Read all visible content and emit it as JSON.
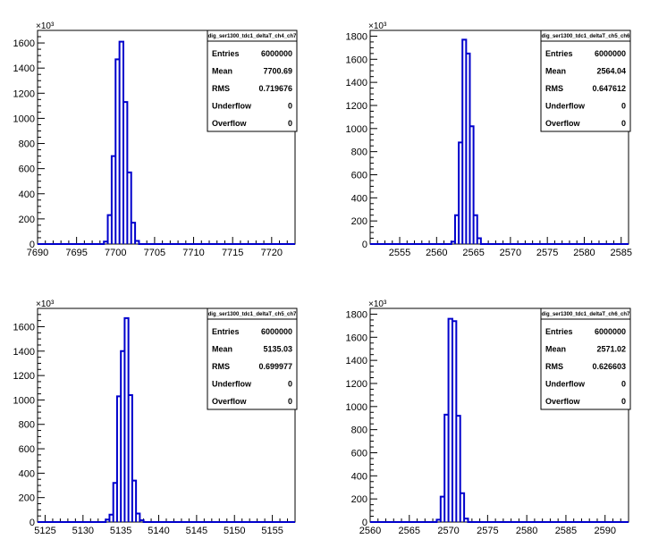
{
  "colors": {
    "histogram_line": "#0000cc",
    "axis": "#000000",
    "background": "#ffffff"
  },
  "y_exponent_label": "×10³",
  "chart_data": [
    {
      "type": "bar",
      "title": "",
      "histogram_name": "dig_ser1300_tdc1_deltaT_ch4_ch7",
      "xlim": [
        7690,
        7723
      ],
      "ylim": [
        0,
        1700
      ],
      "x_ticks": [
        7690,
        7695,
        7700,
        7705,
        7710,
        7715,
        7720
      ],
      "y_ticks": [
        0,
        200,
        400,
        600,
        800,
        1000,
        1200,
        1400,
        1600
      ],
      "y_tick_labels": [
        "0",
        "200",
        "400",
        "600",
        "800",
        "1000",
        "1200",
        "1400",
        "1600"
      ],
      "bin_width": 0.5,
      "bins": [
        {
          "x": 7698.5,
          "y": 20
        },
        {
          "x": 7699,
          "y": 230
        },
        {
          "x": 7699.5,
          "y": 700
        },
        {
          "x": 7700,
          "y": 1470
        },
        {
          "x": 7700.5,
          "y": 1610
        },
        {
          "x": 7701,
          "y": 1130
        },
        {
          "x": 7701.5,
          "y": 570
        },
        {
          "x": 7702,
          "y": 170
        },
        {
          "x": 7702.5,
          "y": 25
        }
      ],
      "stats": [
        {
          "label": "Entries",
          "value": "6000000"
        },
        {
          "label": "Mean",
          "value": "7700.69"
        },
        {
          "label": "RMS",
          "value": "0.719676"
        },
        {
          "label": "Underflow",
          "value": "0"
        },
        {
          "label": "Overflow",
          "value": "0"
        }
      ]
    },
    {
      "type": "bar",
      "title": "",
      "histogram_name": "dig_ser1300_tdc1_deltaT_ch5_ch6",
      "xlim": [
        2551,
        2586
      ],
      "ylim": [
        0,
        1850
      ],
      "x_ticks": [
        2555,
        2560,
        2565,
        2570,
        2575,
        2580,
        2585
      ],
      "y_ticks": [
        0,
        200,
        400,
        600,
        800,
        1000,
        1200,
        1400,
        1600,
        1800
      ],
      "y_tick_labels": [
        "0",
        "200",
        "400",
        "600",
        "800",
        "1000",
        "1200",
        "1400",
        "1600",
        "1800"
      ],
      "bin_width": 0.5,
      "bins": [
        {
          "x": 2562,
          "y": 20
        },
        {
          "x": 2562.5,
          "y": 250
        },
        {
          "x": 2563,
          "y": 880
        },
        {
          "x": 2563.5,
          "y": 1770
        },
        {
          "x": 2564,
          "y": 1650
        },
        {
          "x": 2564.5,
          "y": 1020
        },
        {
          "x": 2565,
          "y": 250
        },
        {
          "x": 2565.5,
          "y": 50
        }
      ],
      "stats": [
        {
          "label": "Entries",
          "value": "6000000"
        },
        {
          "label": "Mean",
          "value": "2564.04"
        },
        {
          "label": "RMS",
          "value": "0.647612"
        },
        {
          "label": "Underflow",
          "value": "0"
        },
        {
          "label": "Overflow",
          "value": "0"
        }
      ]
    },
    {
      "type": "bar",
      "title": "",
      "histogram_name": "dig_ser1300_tdc1_deltaT_ch5_ch7",
      "xlim": [
        5124,
        5158
      ],
      "ylim": [
        0,
        1750
      ],
      "x_ticks": [
        5125,
        5130,
        5135,
        5140,
        5145,
        5150,
        5155
      ],
      "y_ticks": [
        0,
        200,
        400,
        600,
        800,
        1000,
        1200,
        1400,
        1600
      ],
      "y_tick_labels": [
        "0",
        "200",
        "400",
        "600",
        "800",
        "1000",
        "1200",
        "1400",
        "1600"
      ],
      "bin_width": 0.5,
      "bins": [
        {
          "x": 5133,
          "y": 20
        },
        {
          "x": 5133.5,
          "y": 60
        },
        {
          "x": 5134,
          "y": 320
        },
        {
          "x": 5134.5,
          "y": 1030
        },
        {
          "x": 5135,
          "y": 1400
        },
        {
          "x": 5135.5,
          "y": 1670
        },
        {
          "x": 5136,
          "y": 1040
        },
        {
          "x": 5136.5,
          "y": 340
        },
        {
          "x": 5137,
          "y": 70
        },
        {
          "x": 5137.5,
          "y": 15
        }
      ],
      "stats": [
        {
          "label": "Entries",
          "value": "6000000"
        },
        {
          "label": "Mean",
          "value": "5135.03"
        },
        {
          "label": "RMS",
          "value": "0.699977"
        },
        {
          "label": "Underflow",
          "value": "0"
        },
        {
          "label": "Overflow",
          "value": "0"
        }
      ]
    },
    {
      "type": "bar",
      "title": "",
      "histogram_name": "dig_ser1300_tdc1_deltaT_ch6_ch7",
      "xlim": [
        2560,
        2593
      ],
      "ylim": [
        0,
        1850
      ],
      "x_ticks": [
        2560,
        2565,
        2570,
        2575,
        2580,
        2585,
        2590
      ],
      "y_ticks": [
        0,
        200,
        400,
        600,
        800,
        1000,
        1200,
        1400,
        1600,
        1800
      ],
      "y_tick_labels": [
        "0",
        "200",
        "400",
        "600",
        "800",
        "1000",
        "1200",
        "1400",
        "1600",
        "1800"
      ],
      "bin_width": 0.5,
      "bins": [
        {
          "x": 2568.5,
          "y": 20
        },
        {
          "x": 2569,
          "y": 220
        },
        {
          "x": 2569.5,
          "y": 930
        },
        {
          "x": 2570,
          "y": 1760
        },
        {
          "x": 2570.5,
          "y": 1740
        },
        {
          "x": 2571,
          "y": 920
        },
        {
          "x": 2571.5,
          "y": 250
        },
        {
          "x": 2572,
          "y": 30
        }
      ],
      "stats": [
        {
          "label": "Entries",
          "value": "6000000"
        },
        {
          "label": "Mean",
          "value": "2571.02"
        },
        {
          "label": "RMS",
          "value": "0.626603"
        },
        {
          "label": "Underflow",
          "value": "0"
        },
        {
          "label": "Overflow",
          "value": "0"
        }
      ]
    }
  ]
}
